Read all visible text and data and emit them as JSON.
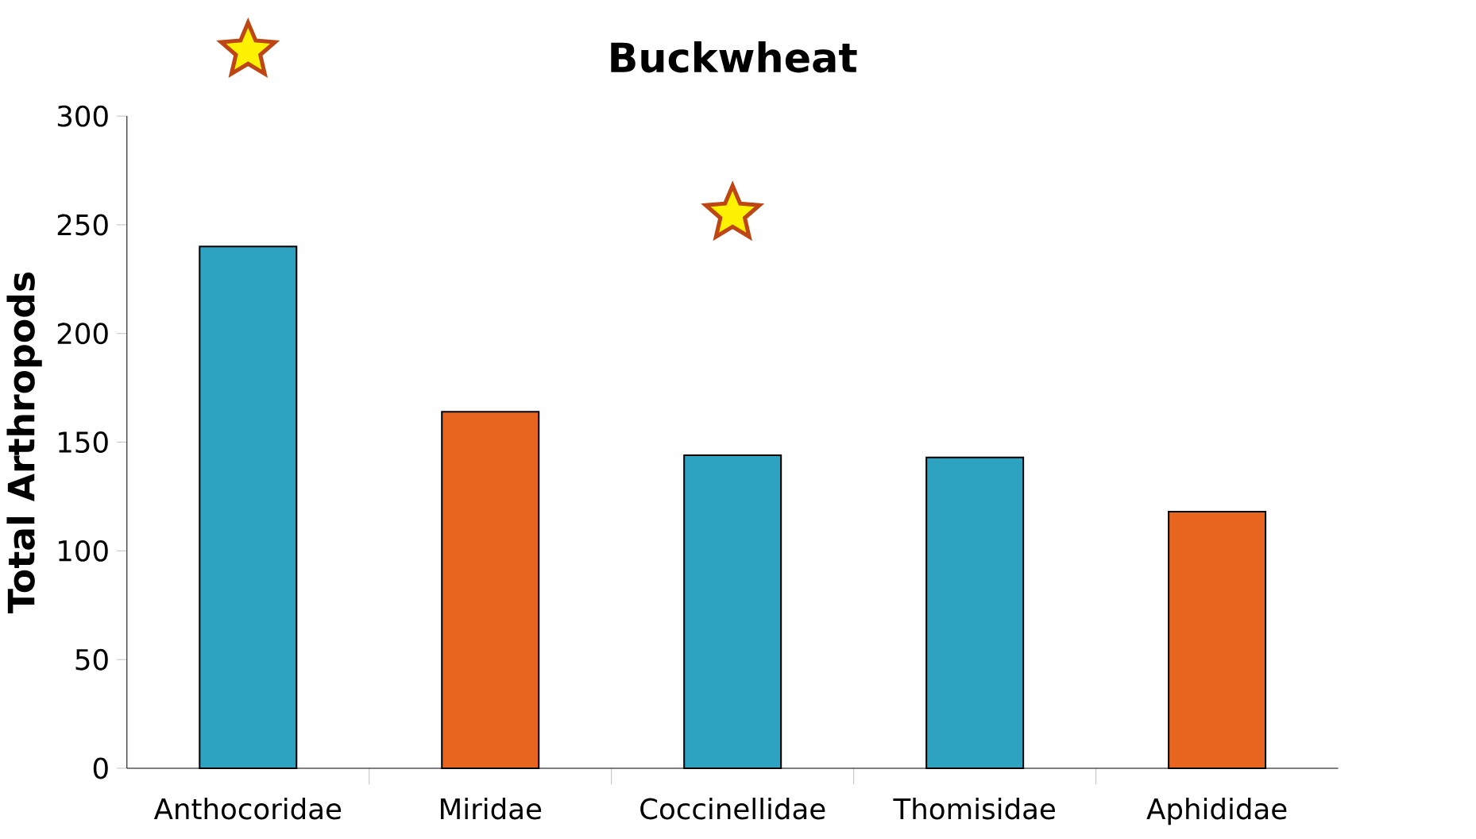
{
  "chart_data": {
    "type": "bar",
    "title": "Buckwheat",
    "ylabel": "Total Arthropods",
    "categories": [
      "Anthocoridae",
      "Miridae",
      "Coccinellidae",
      "Thomisidae",
      "Aphididae"
    ],
    "values": [
      240,
      164,
      144,
      143,
      118
    ],
    "colors": [
      "#2ea3c1",
      "#e8651f",
      "#2ea3c1",
      "#2ea3c1",
      "#e8651f"
    ],
    "ylim": [
      0,
      300
    ],
    "yticks": [
      0,
      50,
      100,
      150,
      200,
      250,
      300
    ],
    "grid": false
  }
}
